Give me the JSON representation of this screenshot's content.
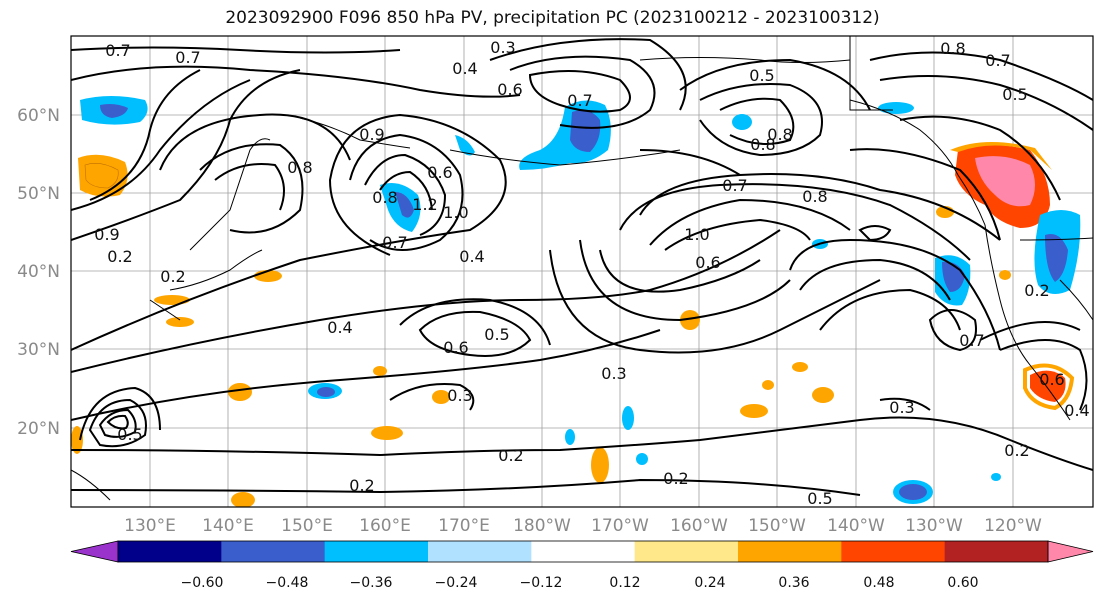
{
  "title": "2023092900 F096 850 hPa PV, precipitation PC (2023100212 - 2023100312)",
  "lat_labels": [
    "60°N",
    "50°N",
    "40°N",
    "30°N",
    "20°N"
  ],
  "lon_labels": [
    "130°E",
    "140°E",
    "150°E",
    "160°E",
    "170°E",
    "180°W",
    "170°W",
    "160°W",
    "150°W",
    "140°W",
    "130°W",
    "120°W"
  ],
  "colorbar": {
    "ticks": [
      "−0.60",
      "−0.48",
      "−0.36",
      "−0.24",
      "−0.12",
      "0.12",
      "0.24",
      "0.36",
      "0.48",
      "0.60"
    ],
    "colors": [
      "#9933cc",
      "#00008b",
      "#3a5fcd",
      "#00bfff",
      "#b0e2ff",
      "#ffffff",
      "#ffe88a",
      "#ffa500",
      "#ff4500",
      "#b22222",
      "#ff88aa"
    ]
  },
  "contour_labels": [
    "0.7",
    "0.7",
    "0.3",
    "0.4",
    "0.6",
    "0.7",
    "0.5",
    "0.8",
    "0.7",
    "0.5",
    "0.8",
    "0.8",
    "0.7",
    "0.9",
    "0.8",
    "0.8",
    "0.6",
    "1.2",
    "1.0",
    "0.7",
    "0.8",
    "1.0",
    "0.6",
    "0.4",
    "0.2",
    "0.9",
    "0.2",
    "0.4",
    "0.5",
    "0.6",
    "0.3",
    "0.3",
    "0.7",
    "0.2",
    "0.2",
    "0.2",
    "0.2",
    "0.3",
    "0.4",
    "0.2",
    "0.5",
    "0.5",
    "0.6"
  ]
}
